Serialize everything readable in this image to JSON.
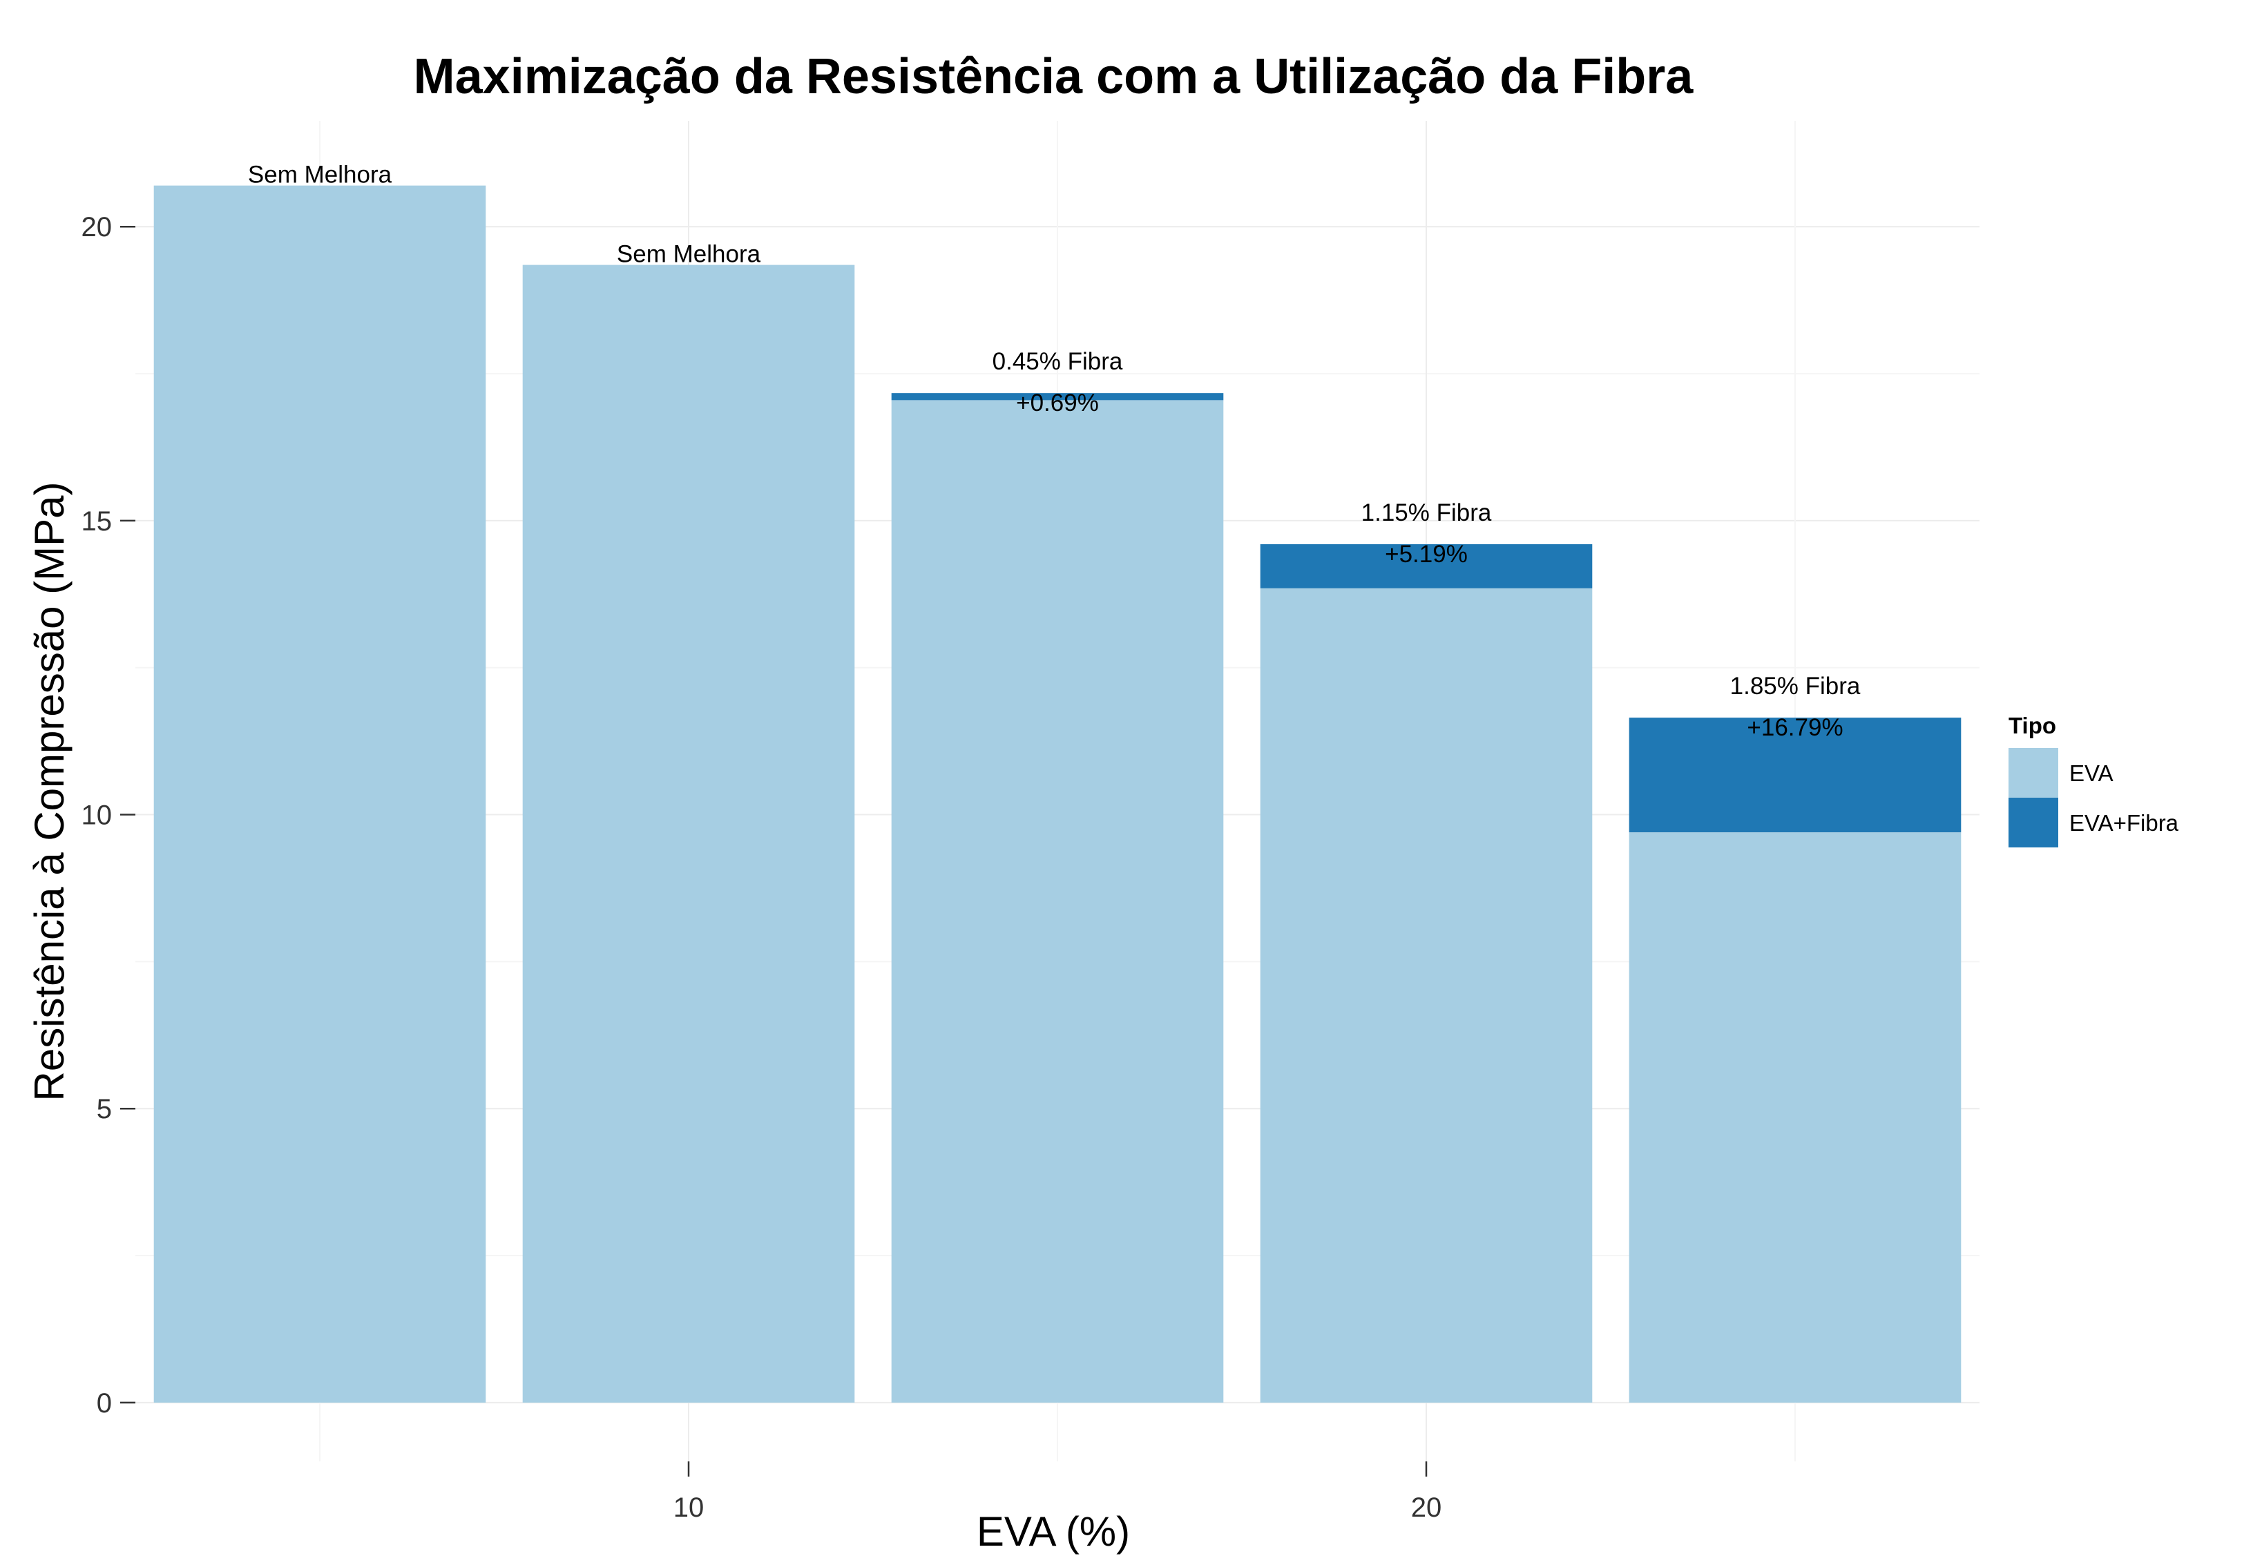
{
  "chart_data": {
    "type": "bar",
    "stacked": true,
    "title": "Maximização da Resistência com a Utilização da Fibra",
    "xlabel": "EVA (%)",
    "ylabel": "Resistência à Compressão (MPa)",
    "x": [
      5,
      10,
      15,
      20,
      25
    ],
    "x_ticks": [
      10,
      20
    ],
    "xlim": [
      2.5,
      27.5
    ],
    "ylim": [
      -1.0,
      21.8
    ],
    "y_ticks": [
      0,
      5,
      10,
      15,
      20
    ],
    "grid": true,
    "legend": {
      "title": "Tipo",
      "position": "right"
    },
    "series": [
      {
        "name": "EVA",
        "color": "#a6cee3",
        "values": [
          20.7,
          19.35,
          17.05,
          13.85,
          9.7
        ]
      },
      {
        "name": "EVA+Fibra",
        "color": "#1f78b4",
        "values": [
          0,
          0,
          0.12,
          0.75,
          1.95
        ]
      }
    ],
    "annotations": [
      {
        "x": 5,
        "lines": [
          "Sem Melhora"
        ]
      },
      {
        "x": 10,
        "lines": [
          "Sem Melhora"
        ]
      },
      {
        "x": 15,
        "lines": [
          "0.45% Fibra",
          "+0.69%"
        ]
      },
      {
        "x": 20,
        "lines": [
          "1.15% Fibra",
          "+5.19%"
        ]
      },
      {
        "x": 25,
        "lines": [
          "1.85% Fibra",
          "+16.79%"
        ]
      }
    ]
  }
}
